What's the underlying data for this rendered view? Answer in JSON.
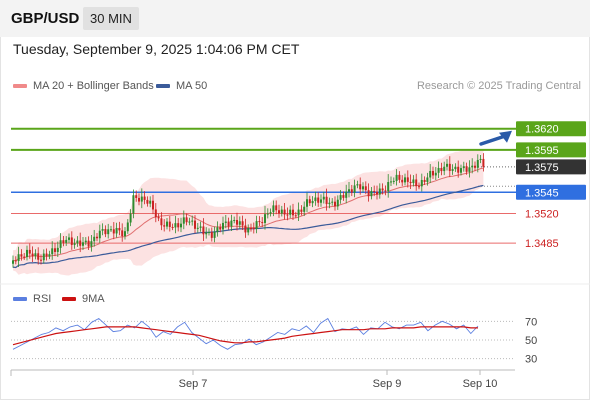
{
  "header": {
    "pair": "GBP/USD",
    "timeframe": "30 MIN",
    "datetime": "Tuesday, September 9, 2025 1:04:06 PM CET"
  },
  "legend": {
    "ma20_label": "MA 20 + Bollinger Bands",
    "ma50_label": "MA 50",
    "credit": "Research © 2025 Trading Central",
    "rsi_label": "RSI",
    "ma9_label": "9MA"
  },
  "colors": {
    "up": "#2e8b2e",
    "down": "#cc2222",
    "ma20": "#e07070",
    "ma50": "#3b5b9a",
    "band_fill": "#fbd8d8",
    "resistance": "#5aa51a",
    "pivot": "#2f6fe0",
    "support": "#e96a6a",
    "current": "#333333",
    "arrow": "#2a5aa8",
    "rsi": "#5b7fe0",
    "rsi_ma": "#cc1111"
  },
  "chart_data": [
    {
      "type": "candlestick",
      "ylim": [
        1.3458,
        1.3648
      ],
      "x_ticks": [
        "Sep 7",
        "Sep 9",
        "Sep 10"
      ],
      "levels": [
        {
          "value": 1.362,
          "label": "1.3620",
          "kind": "resistance"
        },
        {
          "value": 1.3595,
          "label": "1.3595",
          "kind": "resistance"
        },
        {
          "value": 1.3575,
          "label": "1.3575",
          "kind": "current"
        },
        {
          "value": 1.3545,
          "label": "1.3545",
          "kind": "pivot"
        },
        {
          "value": 1.352,
          "label": "1.3520",
          "kind": "support"
        },
        {
          "value": 1.3485,
          "label": "1.3485",
          "kind": "support"
        }
      ],
      "series": [
        {
          "name": "MA 20 + Bollinger Bands",
          "type": "line+band"
        },
        {
          "name": "MA 50",
          "type": "line"
        }
      ],
      "anchors": [
        [
          0,
          1.3463
        ],
        [
          12,
          1.3475
        ],
        [
          26,
          1.349
        ],
        [
          36,
          1.3497
        ],
        [
          40,
          1.3503
        ],
        [
          43,
          1.354
        ],
        [
          47,
          1.3533
        ],
        [
          52,
          1.3512
        ],
        [
          60,
          1.3508
        ],
        [
          68,
          1.35
        ],
        [
          76,
          1.3505
        ],
        [
          84,
          1.3506
        ],
        [
          92,
          1.3518
        ],
        [
          104,
          1.3528
        ],
        [
          112,
          1.3535
        ],
        [
          120,
          1.3545
        ],
        [
          128,
          1.3548
        ],
        [
          136,
          1.3555
        ],
        [
          144,
          1.356
        ],
        [
          152,
          1.3566
        ],
        [
          158,
          1.3578
        ],
        [
          164,
          1.3574
        ],
        [
          168,
          1.3576
        ]
      ],
      "candle_count": 169
    },
    {
      "type": "line",
      "series": [
        {
          "name": "RSI",
          "values": [
            40,
            44,
            48,
            52,
            56,
            58,
            63,
            60,
            64,
            66,
            61,
            69,
            73,
            66,
            59,
            60,
            66,
            63,
            70,
            64,
            53,
            59,
            56,
            64,
            69,
            58,
            52,
            46,
            50,
            44,
            40,
            45,
            46,
            51,
            45,
            48,
            53,
            58,
            56,
            62,
            60,
            65,
            58,
            68,
            73,
            59,
            62,
            61,
            64,
            56,
            63,
            62,
            69,
            64,
            62,
            66,
            66,
            69,
            60,
            66,
            70,
            67,
            62,
            66,
            57,
            65
          ]
        },
        {
          "name": "9MA",
          "values": [
            45,
            47,
            49,
            51,
            53,
            55,
            57,
            58,
            59,
            60,
            61,
            62,
            63,
            64,
            64,
            64,
            64,
            64,
            63,
            62,
            61,
            60,
            59,
            58,
            57,
            56,
            55,
            53,
            51,
            49,
            48,
            47,
            47,
            48,
            48,
            49,
            50,
            51,
            52,
            54,
            55,
            56,
            57,
            58,
            59,
            60,
            61,
            61,
            61,
            61,
            62,
            62,
            62,
            63,
            63,
            63,
            63,
            64,
            64,
            64,
            64,
            64,
            64,
            64,
            63,
            63
          ]
        }
      ],
      "ylim": [
        20,
        80
      ],
      "y_ticks": [
        "70",
        "50",
        "30"
      ]
    }
  ]
}
